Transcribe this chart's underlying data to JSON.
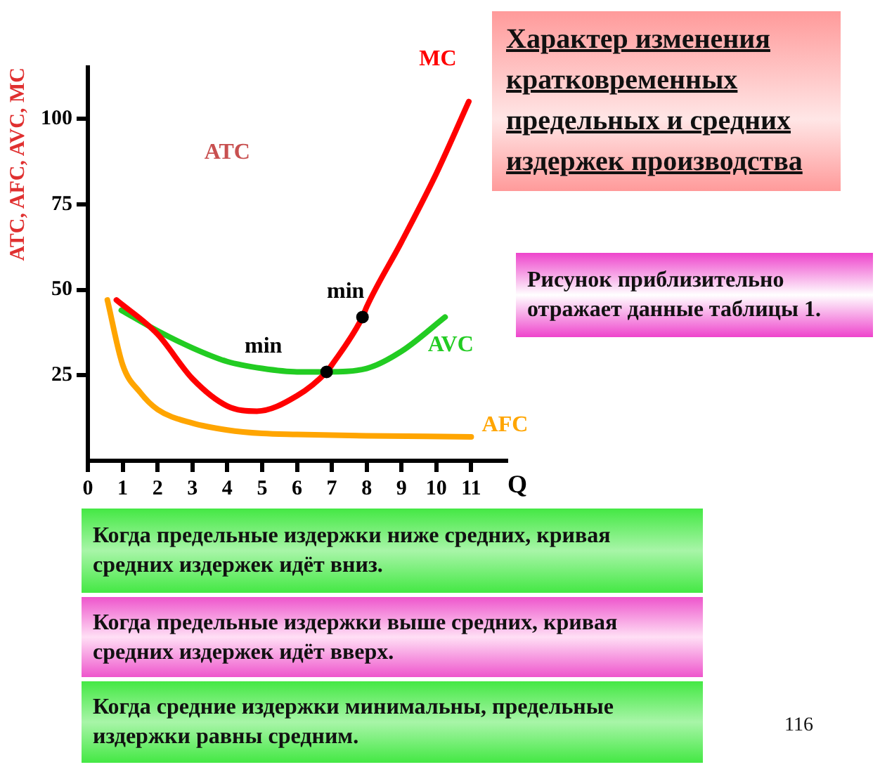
{
  "chart_data": {
    "type": "line",
    "title": "Характер изменения кратковременных предельных и средних издержек производства",
    "xlabel": "Q",
    "ylabel": "ATC, AFC, AVC, MC",
    "xlim": [
      0,
      12
    ],
    "ylim": [
      0,
      115
    ],
    "xticks": [
      0,
      1,
      2,
      3,
      4,
      5,
      6,
      7,
      8,
      9,
      10,
      11
    ],
    "yticks": [
      25,
      50,
      75,
      100
    ],
    "grid": false,
    "legend": false,
    "marker": "none",
    "line_style": "solid",
    "series": [
      {
        "name": "MC",
        "color": "#ff0000",
        "x": [
          0.82,
          2,
          3,
          4,
          4.85,
          6,
          6.85,
          7,
          7.88,
          8,
          9,
          10,
          10.93
        ],
        "values": [
          47,
          37,
          24,
          16,
          14.5,
          19,
          26,
          28,
          42,
          45,
          64,
          84,
          105
        ]
      },
      {
        "name": "AVC",
        "color": "#22cc22",
        "x": [
          0.96,
          2,
          3,
          4,
          5,
          6,
          6.85,
          8,
          9,
          10.25
        ],
        "values": [
          44,
          38,
          33,
          29,
          27,
          26,
          26,
          27,
          32,
          42
        ]
      },
      {
        "name": "AFC",
        "color": "#ffa500",
        "x": [
          0.56,
          1,
          1.5,
          2,
          3,
          4,
          5,
          6,
          8,
          11
        ],
        "values": [
          47,
          28,
          20,
          15,
          11,
          9,
          8,
          7.7,
          7.3,
          7
        ]
      }
    ],
    "annotations": [
      "ATC",
      {
        "text": "min",
        "x": 6.85,
        "y": 26
      },
      {
        "text": "min",
        "x": 7.88,
        "y": 42
      },
      "Рисунок приблизительно отражает данные таблицы 1.",
      "Когда предельные издержки ниже средних, кривая средних издержек идёт вниз.",
      "Когда предельные издержки выше средних, кривая средних издержек идёт вверх.",
      "Когда средние издержки минимальны, предельные издержки равны средним.",
      "116"
    ]
  }
}
